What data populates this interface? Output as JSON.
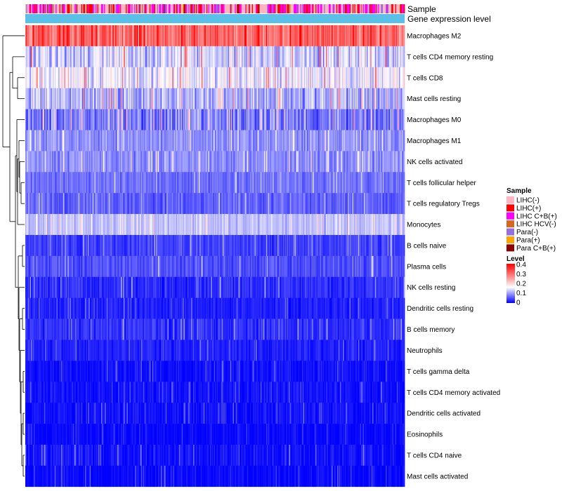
{
  "chart_data": {
    "type": "heatmap",
    "title": "",
    "annotation_tracks": [
      {
        "name": "Sample",
        "kind": "categorical"
      },
      {
        "name": "Gene expression level",
        "kind": "constant",
        "color": "#5BC0E8"
      }
    ],
    "rows": [
      {
        "label": "Macrophages M2",
        "mean": 0.3,
        "spread": 0.1
      },
      {
        "label": "T cells CD4 memory resting",
        "mean": 0.13,
        "spread": 0.1
      },
      {
        "label": "T cells CD8",
        "mean": 0.15,
        "spread": 0.09
      },
      {
        "label": "Mast cells resting",
        "mean": 0.11,
        "spread": 0.09
      },
      {
        "label": "Macrophages M0",
        "mean": 0.08,
        "spread": 0.09
      },
      {
        "label": "Macrophages M1",
        "mean": 0.09,
        "spread": 0.05
      },
      {
        "label": "NK cells activated",
        "mean": 0.09,
        "spread": 0.05
      },
      {
        "label": "T cells follicular helper",
        "mean": 0.07,
        "spread": 0.04
      },
      {
        "label": "T cells regulatory  Tregs",
        "mean": 0.06,
        "spread": 0.04
      },
      {
        "label": "Monocytes",
        "mean": 0.12,
        "spread": 0.04
      },
      {
        "label": "B cells naive",
        "mean": 0.04,
        "spread": 0.04
      },
      {
        "label": "Plasma cells",
        "mean": 0.05,
        "spread": 0.04
      },
      {
        "label": "NK cells resting",
        "mean": 0.03,
        "spread": 0.04
      },
      {
        "label": "Dendritic cells resting",
        "mean": 0.02,
        "spread": 0.03
      },
      {
        "label": "B cells memory",
        "mean": 0.03,
        "spread": 0.04
      },
      {
        "label": "Neutrophils",
        "mean": 0.02,
        "spread": 0.03
      },
      {
        "label": "T cells gamma delta",
        "mean": 0.01,
        "spread": 0.03
      },
      {
        "label": "T cells CD4 memory activated",
        "mean": 0.01,
        "spread": 0.03
      },
      {
        "label": "Dendritic cells activated",
        "mean": 0.01,
        "spread": 0.03
      },
      {
        "label": "Eosinophils",
        "mean": 0.005,
        "spread": 0.02
      },
      {
        "label": "T cells CD4 naive",
        "mean": 0.01,
        "spread": 0.04
      },
      {
        "label": "Mast cells activated",
        "mean": 0.005,
        "spread": 0.03
      }
    ],
    "legend_sample": {
      "title": "Sample",
      "entries": [
        {
          "label": "LIHC(-)",
          "color": "#FFB6C1"
        },
        {
          "label": "LIHC(+)",
          "color": "#FF0000"
        },
        {
          "label": "LIHC C+B(+)",
          "color": "#FF00FF"
        },
        {
          "label": "LIHC HCV(-)",
          "color": "#D2691E"
        },
        {
          "label": "Para(-)",
          "color": "#9370DB"
        },
        {
          "label": "Para(+)",
          "color": "#FFA500"
        },
        {
          "label": "Para C+B(+)",
          "color": "#8B0000"
        }
      ]
    },
    "legend_level": {
      "title": "Level",
      "range": [
        0,
        0.4
      ],
      "ticks": [
        "0.4",
        "0.3",
        "0.2",
        "0.1",
        "0"
      ],
      "colors": [
        "#0000FF",
        "#FFFFFF",
        "#FF0000"
      ]
    },
    "n_samples": 400
  }
}
